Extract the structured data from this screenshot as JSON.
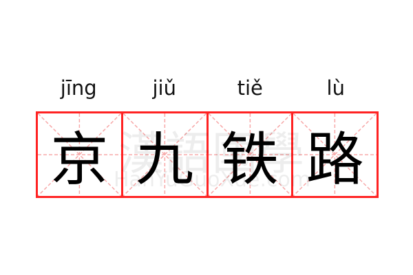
{
  "word": [
    {
      "pinyin": "jīng",
      "char": "京"
    },
    {
      "pinyin": "jiǔ",
      "char": "九"
    },
    {
      "pinyin": "tiě",
      "char": "铁"
    },
    {
      "pinyin": "lù",
      "char": "路"
    }
  ],
  "watermark": {
    "chinese": "漢語國學",
    "latin": "HanYuGuoXue.com"
  },
  "colors": {
    "grid_border": "#ff2222",
    "guide_lines": "#f7a8a8",
    "text": "#000000"
  }
}
